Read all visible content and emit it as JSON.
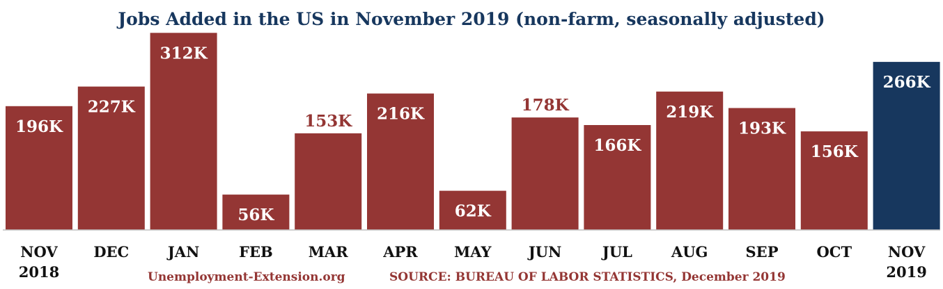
{
  "colors": {
    "bar": "#943634",
    "highlight": "#17375e",
    "title": "#17375e",
    "footer": "#943634",
    "label_inside": "#ffffff",
    "label_outside": "#943634",
    "axis": "#bfbfbf"
  },
  "chart_data": {
    "type": "bar",
    "title": "Jobs Added in the US in November 2019 (non-farm, seasonally adjusted)",
    "categories": [
      [
        "NOV",
        "2018"
      ],
      [
        "DEC"
      ],
      [
        "JAN"
      ],
      [
        "FEB"
      ],
      [
        "MAR"
      ],
      [
        "APR"
      ],
      [
        "MAY"
      ],
      [
        "JUN"
      ],
      [
        "JUL"
      ],
      [
        "AUG"
      ],
      [
        "SEP"
      ],
      [
        "OCT"
      ],
      [
        "NOV",
        "2019"
      ]
    ],
    "values": [
      196,
      227,
      312,
      56,
      153,
      216,
      62,
      178,
      166,
      219,
      193,
      156,
      266
    ],
    "data_labels": [
      "196K",
      "227K",
      "312K",
      "56K",
      "153K",
      "216K",
      "62K",
      "178K",
      "166K",
      "219K",
      "193K",
      "156K",
      "266K"
    ],
    "label_position": [
      "inside",
      "inside",
      "inside",
      "inside",
      "outside",
      "inside",
      "inside",
      "outside",
      "inside",
      "inside",
      "inside",
      "inside",
      "inside"
    ],
    "highlight_index": 12,
    "ylim": [
      0,
      320
    ],
    "grid": false,
    "legend": "none"
  },
  "footer": {
    "website": "Unemployment-Extension.org",
    "source": "SOURCE: BUREAU OF LABOR STATISTICS, December 2019"
  }
}
